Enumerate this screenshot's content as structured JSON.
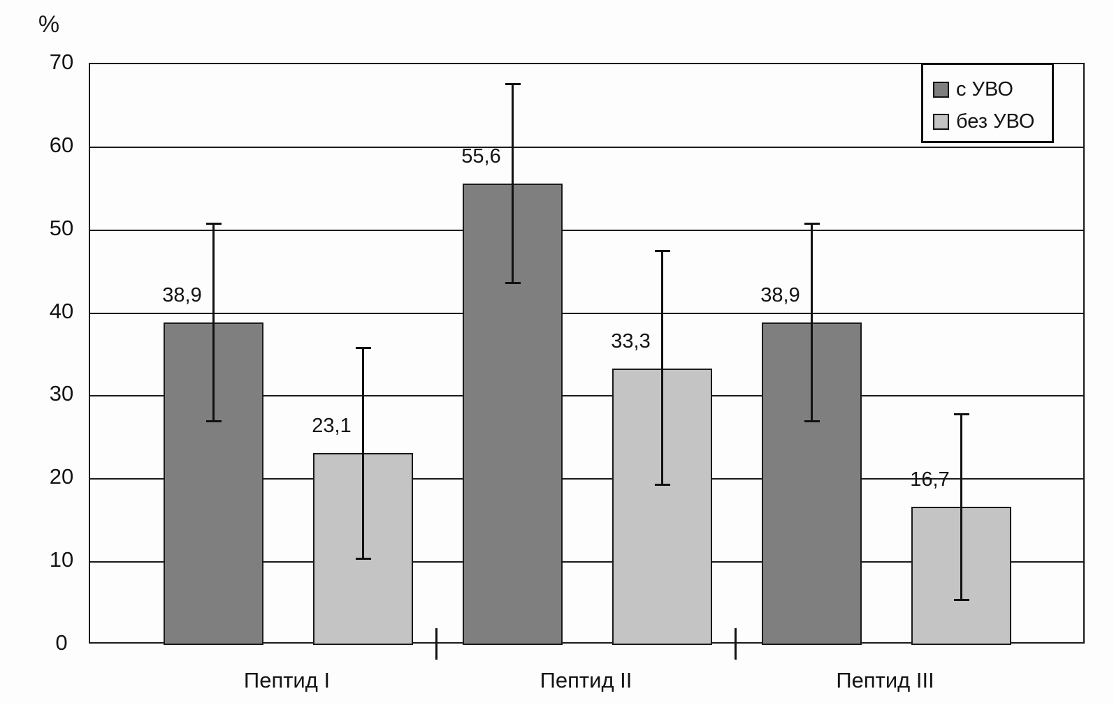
{
  "chart_data": {
    "type": "bar",
    "title": "",
    "ylabel": "%",
    "xlabel": "",
    "ylim": [
      0,
      70
    ],
    "yticks": [
      0,
      10,
      20,
      30,
      40,
      50,
      60,
      70
    ],
    "grid": true,
    "legend_position": "top-right",
    "categories": [
      "Пептид I",
      "Пептид II",
      "Пептид III"
    ],
    "series": [
      {
        "name": "с УВО",
        "color": "#7f7f7f",
        "values": [
          38.9,
          55.6,
          38.9
        ],
        "value_labels": [
          "38,9",
          "55,6",
          "38,9"
        ],
        "error_low": [
          27.0,
          43.6,
          27.0
        ],
        "error_high": [
          50.8,
          67.6,
          50.8
        ]
      },
      {
        "name": "без УВО",
        "color": "#c4c4c4",
        "values": [
          23.1,
          33.3,
          16.7
        ],
        "value_labels": [
          "23,1",
          "33,3",
          "16,7"
        ],
        "error_low": [
          10.4,
          19.3,
          5.4
        ],
        "error_high": [
          35.8,
          47.5,
          27.8
        ]
      }
    ]
  },
  "colors": {
    "line": "#1a1a1a",
    "background": "#fdfdfd",
    "bar_dark": "#7f7f7f",
    "bar_light": "#c4c4c4"
  }
}
